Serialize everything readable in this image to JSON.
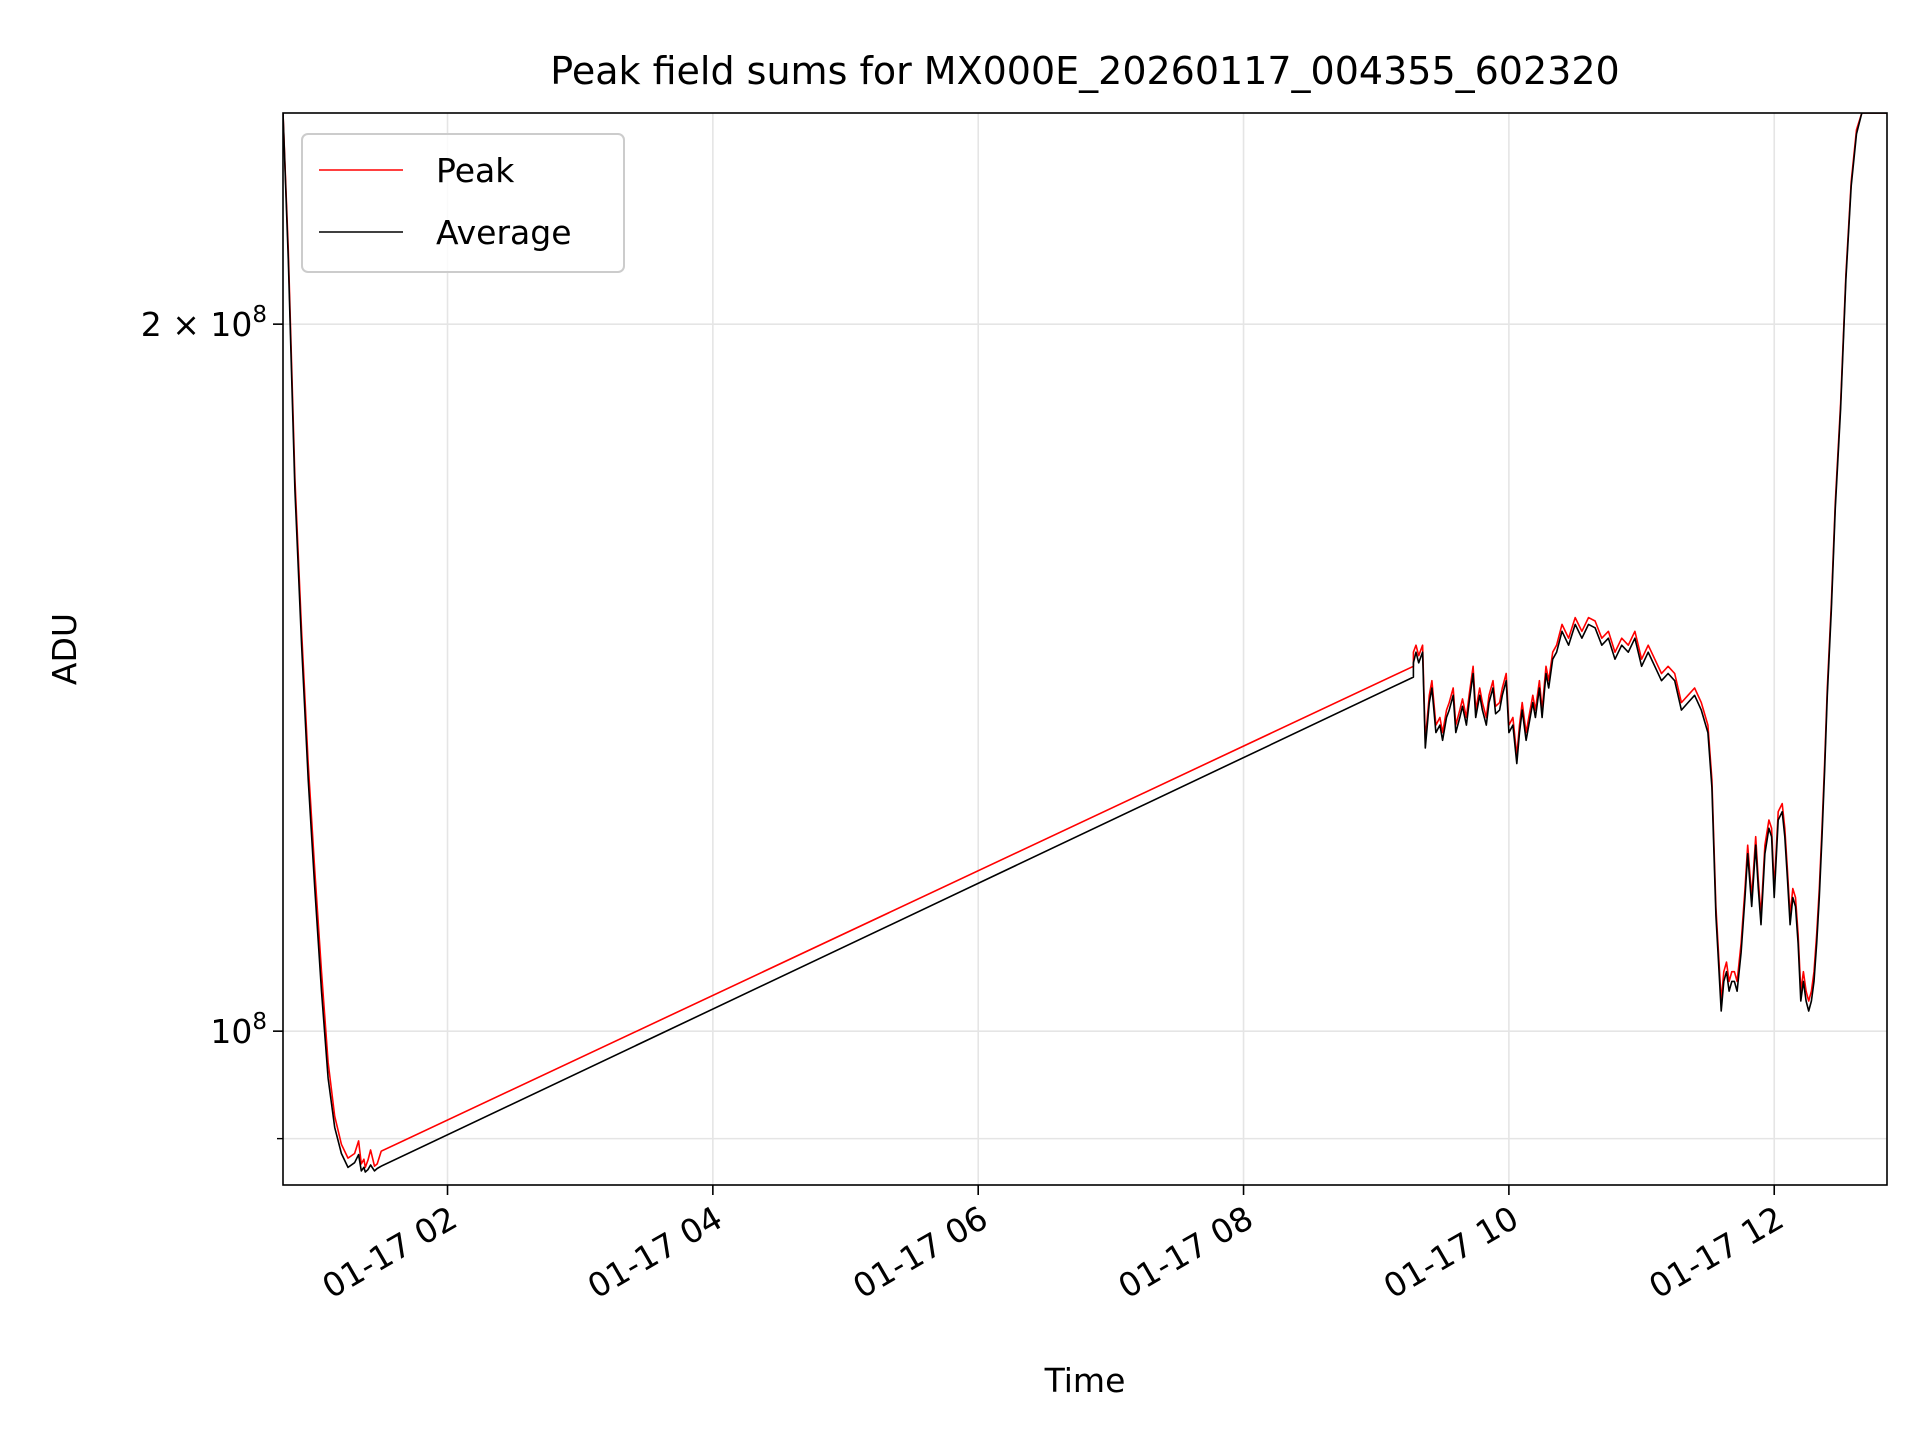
{
  "chart_data": {
    "type": "line",
    "title": "Peak field sums for MX000E_20260117_004355_602320",
    "xlabel": "Time",
    "ylabel": "ADU",
    "yscale": "log",
    "grid": true,
    "legend_position": "top-left",
    "xlim_hours": [
      0.76,
      12.85
    ],
    "ylim": [
      86000000,
      246000000
    ],
    "x_unit": "hours since 2026-01-17 00:00",
    "x_ticks": [
      {
        "value": 2,
        "label": "01-17 02"
      },
      {
        "value": 4,
        "label": "01-17 04"
      },
      {
        "value": 6,
        "label": "01-17 06"
      },
      {
        "value": 8,
        "label": "01-17 08"
      },
      {
        "value": 10,
        "label": "01-17 10"
      },
      {
        "value": 12,
        "label": "01-17 12"
      }
    ],
    "y_ticks": [
      {
        "value": 100000000,
        "base": "10",
        "exp": "8",
        "coef": ""
      },
      {
        "value": 200000000,
        "base": "10",
        "exp": "8",
        "coef": "2 × "
      }
    ],
    "y_minor_ticks": [
      90000000
    ],
    "series": [
      {
        "name": "Peak",
        "color": "#ff0000",
        "x": [
          0.76,
          0.8,
          0.85,
          0.9,
          0.95,
          1.0,
          1.05,
          1.1,
          1.15,
          1.2,
          1.25,
          1.3,
          1.33,
          1.35,
          1.37,
          1.38,
          1.4,
          1.42,
          1.45,
          1.47,
          1.5,
          9.28,
          9.28,
          9.3,
          9.32,
          9.35,
          9.37,
          9.4,
          9.42,
          9.45,
          9.48,
          9.5,
          9.53,
          9.55,
          9.58,
          9.6,
          9.63,
          9.65,
          9.68,
          9.7,
          9.73,
          9.75,
          9.78,
          9.8,
          9.83,
          9.85,
          9.88,
          9.9,
          9.93,
          9.95,
          9.98,
          10.0,
          10.03,
          10.06,
          10.08,
          10.1,
          10.13,
          10.15,
          10.18,
          10.2,
          10.23,
          10.25,
          10.28,
          10.3,
          10.33,
          10.36,
          10.4,
          10.45,
          10.5,
          10.55,
          10.6,
          10.65,
          10.7,
          10.75,
          10.8,
          10.85,
          10.9,
          10.95,
          11.0,
          11.05,
          11.1,
          11.15,
          11.2,
          11.25,
          11.3,
          11.35,
          11.4,
          11.45,
          11.5,
          11.53,
          11.56,
          11.58,
          11.6,
          11.62,
          11.64,
          11.66,
          11.68,
          11.7,
          11.72,
          11.75,
          11.78,
          11.8,
          11.83,
          11.86,
          11.88,
          11.9,
          11.93,
          11.96,
          11.98,
          12.0,
          12.03,
          12.06,
          12.08,
          12.1,
          12.12,
          12.14,
          12.16,
          12.18,
          12.2,
          12.22,
          12.24,
          12.26,
          12.28,
          12.3,
          12.32,
          12.34,
          12.36,
          12.38,
          12.4,
          12.43,
          12.46,
          12.5,
          12.54,
          12.58,
          12.62,
          12.66,
          12.7,
          12.75,
          12.8,
          12.85
        ],
        "y": [
          246000000,
          215000000,
          172000000,
          148000000,
          130000000,
          117000000,
          106000000,
          97000000,
          92000000,
          89500000,
          88300000,
          88700000,
          89800000,
          87800000,
          88200000,
          87500000,
          88100000,
          89000000,
          87600000,
          87800000,
          88900000,
          143000000,
          145000000,
          146000000,
          144500000,
          146000000,
          133000000,
          139000000,
          141000000,
          135000000,
          136000000,
          134000000,
          137000000,
          138000000,
          140000000,
          135000000,
          137000000,
          138500000,
          136000000,
          139000000,
          143000000,
          137000000,
          140000000,
          138000000,
          136000000,
          139000000,
          141000000,
          137500000,
          138000000,
          140000000,
          142000000,
          135000000,
          136000000,
          131000000,
          135000000,
          138000000,
          134000000,
          136000000,
          139000000,
          137000000,
          141000000,
          137000000,
          143000000,
          141000000,
          145000000,
          146000000,
          149000000,
          147000000,
          150000000,
          148000000,
          150000000,
          149500000,
          147000000,
          148000000,
          145000000,
          147000000,
          146000000,
          148000000,
          144000000,
          146000000,
          144000000,
          142000000,
          143000000,
          142000000,
          138000000,
          139000000,
          140000000,
          138000000,
          135000000,
          128000000,
          113000000,
          108000000,
          103000000,
          106000000,
          107000000,
          105000000,
          106000000,
          106000000,
          105000000,
          109000000,
          115000000,
          120000000,
          114000000,
          121000000,
          116000000,
          112000000,
          120000000,
          123000000,
          122000000,
          115000000,
          124000000,
          125000000,
          122000000,
          117000000,
          112000000,
          115000000,
          114000000,
          110000000,
          104000000,
          106000000,
          104000000,
          103000000,
          104000000,
          106000000,
          110000000,
          115000000,
          122000000,
          130000000,
          140000000,
          152000000,
          168000000,
          185000000,
          210000000,
          230000000,
          242000000,
          246000000,
          246000000,
          246000000,
          246000000,
          246000000
        ]
      },
      {
        "name": "Average",
        "color": "#000000",
        "x": [
          0.76,
          0.8,
          0.85,
          0.9,
          0.95,
          1.0,
          1.05,
          1.1,
          1.15,
          1.2,
          1.25,
          1.3,
          1.33,
          1.35,
          1.37,
          1.38,
          1.4,
          1.42,
          1.45,
          1.47,
          1.5,
          9.28,
          9.28,
          9.3,
          9.32,
          9.35,
          9.37,
          9.4,
          9.42,
          9.45,
          9.48,
          9.5,
          9.53,
          9.55,
          9.58,
          9.6,
          9.63,
          9.65,
          9.68,
          9.7,
          9.73,
          9.75,
          9.78,
          9.8,
          9.83,
          9.85,
          9.88,
          9.9,
          9.93,
          9.95,
          9.98,
          10.0,
          10.03,
          10.06,
          10.08,
          10.1,
          10.13,
          10.15,
          10.18,
          10.2,
          10.23,
          10.25,
          10.28,
          10.3,
          10.33,
          10.36,
          10.4,
          10.45,
          10.5,
          10.55,
          10.6,
          10.65,
          10.7,
          10.75,
          10.8,
          10.85,
          10.9,
          10.95,
          11.0,
          11.05,
          11.1,
          11.15,
          11.2,
          11.25,
          11.3,
          11.35,
          11.4,
          11.45,
          11.5,
          11.53,
          11.56,
          11.58,
          11.6,
          11.62,
          11.64,
          11.66,
          11.68,
          11.7,
          11.72,
          11.75,
          11.78,
          11.8,
          11.83,
          11.86,
          11.88,
          11.9,
          11.93,
          11.96,
          11.98,
          12.0,
          12.03,
          12.06,
          12.08,
          12.1,
          12.12,
          12.14,
          12.16,
          12.18,
          12.2,
          12.22,
          12.24,
          12.26,
          12.28,
          12.3,
          12.32,
          12.34,
          12.36,
          12.38,
          12.4,
          12.43,
          12.46,
          12.5,
          12.54,
          12.58,
          12.62,
          12.66,
          12.7,
          12.75,
          12.8,
          12.85
        ],
        "y": [
          246000000,
          213000000,
          170000000,
          146000000,
          128000000,
          115000000,
          104000000,
          95500000,
          91000000,
          88700000,
          87500000,
          87900000,
          88600000,
          87200000,
          87500000,
          87100000,
          87300000,
          87700000,
          87200000,
          87400000,
          87600000,
          141500000,
          143500000,
          145000000,
          143500000,
          145000000,
          132000000,
          138000000,
          140000000,
          134000000,
          135000000,
          133000000,
          136000000,
          137000000,
          139000000,
          134000000,
          136000000,
          137500000,
          135000000,
          138000000,
          142000000,
          136000000,
          139000000,
          137000000,
          135000000,
          138000000,
          140000000,
          136500000,
          137000000,
          139000000,
          141000000,
          134000000,
          135000000,
          130000000,
          134000000,
          137000000,
          133000000,
          135000000,
          138000000,
          136000000,
          140000000,
          136000000,
          142000000,
          140000000,
          144000000,
          145000000,
          148000000,
          146000000,
          149000000,
          147000000,
          149000000,
          148500000,
          146000000,
          147000000,
          144000000,
          146000000,
          145000000,
          147000000,
          143000000,
          145000000,
          143000000,
          141000000,
          142000000,
          141000000,
          137000000,
          138000000,
          139000000,
          137000000,
          134000000,
          127000000,
          112000000,
          107000000,
          102000000,
          105000000,
          106000000,
          104000000,
          105000000,
          105000000,
          104000000,
          108000000,
          114000000,
          119000000,
          113000000,
          120000000,
          115000000,
          111000000,
          119000000,
          122000000,
          121000000,
          114000000,
          123000000,
          124000000,
          121000000,
          116000000,
          111000000,
          114000000,
          113000000,
          109000000,
          103000000,
          105000000,
          103000000,
          102000000,
          103000000,
          105000000,
          109000000,
          114000000,
          121000000,
          129000000,
          139000000,
          151000000,
          167000000,
          184000000,
          209000000,
          229000000,
          241000000,
          246000000,
          246000000,
          246000000,
          246000000,
          246000000
        ]
      }
    ]
  }
}
